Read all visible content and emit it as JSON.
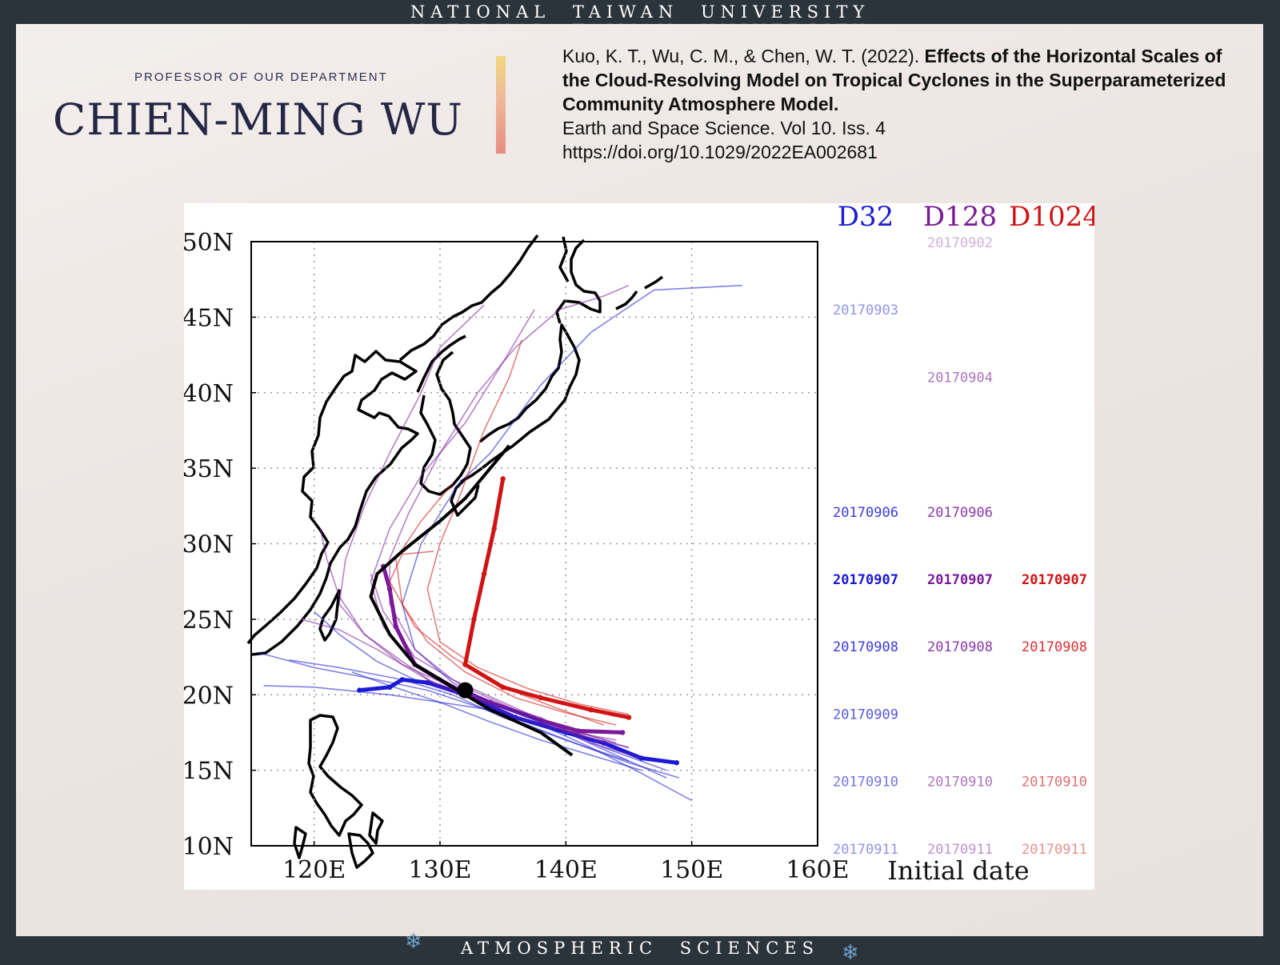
{
  "banner": {
    "top": "NATIONAL TAIWAN UNIVERSITY",
    "bottom": "ATMOSPHERIC SCIENCES"
  },
  "header": {
    "label": "PROFESSOR OF OUR DEPARTMENT",
    "name": "CHIEN-MING WU",
    "citation_authors": "Kuo, K. T., Wu, C. M., & Chen, W. T. (2022). ",
    "citation_title": "Effects of the Horizontal Scales of the Cloud-Resolving Model on Tropical Cyclones in the Superparameterized Community Atmosphere Model.",
    "citation_journal": "Earth and Space Science. Vol 10. Iss. 4",
    "citation_doi": "https://doi.org/10.1029/2022EA002681"
  },
  "icons": {
    "snowflake_left": "snowflake-icon",
    "snowflake_right": "snowflake-icon"
  },
  "colors": {
    "D32": "#1a1ad6",
    "D128": "#7a1a9a",
    "D1024": "#d01414",
    "observed": "#000000",
    "frame": "#2b333b"
  },
  "chart_data": {
    "type": "line",
    "subtype": "tropical-cyclone track map",
    "x_ticks": [
      "120E",
      "130E",
      "140E",
      "150E",
      "160E"
    ],
    "y_ticks": [
      "10N",
      "15N",
      "20N",
      "25N",
      "30N",
      "35N",
      "40N",
      "45N",
      "50N"
    ],
    "xlim": [
      115,
      160
    ],
    "ylim": [
      10,
      50
    ],
    "grid": true,
    "legend_columns": [
      "D32",
      "D128",
      "D1024"
    ],
    "legend_xlabel": "Initial date",
    "legend_dates": [
      "20170902",
      "20170903",
      "20170904",
      "20170906",
      "20170907",
      "20170908",
      "20170909",
      "20170910",
      "20170911"
    ],
    "legend_entries": {
      "D32": [
        "20170903",
        "20170906",
        "20170907",
        "20170908",
        "20170909",
        "20170910",
        "20170911"
      ],
      "D128": [
        "20170902",
        "20170904",
        "20170906",
        "20170907",
        "20170908",
        "20170910",
        "20170911"
      ],
      "D1024": [
        "20170907",
        "20170908",
        "20170910",
        "20170911"
      ]
    },
    "highlight_date": "20170907",
    "observed_track": [
      [
        140.5,
        16
      ],
      [
        138,
        17.5
      ],
      [
        134,
        19
      ],
      [
        131,
        20.5
      ],
      [
        128,
        22
      ],
      [
        126,
        24
      ],
      [
        124.5,
        26.5
      ],
      [
        125,
        28
      ],
      [
        127,
        29.5
      ],
      [
        130,
        31.5
      ],
      [
        132,
        33
      ],
      [
        134,
        35
      ],
      [
        135.5,
        36.5
      ]
    ],
    "observed_start": [
      132,
      20.3
    ],
    "series": [
      {
        "model": "D32",
        "date": "20170907",
        "points": [
          [
            148.8,
            15.5
          ],
          [
            146,
            15.8
          ],
          [
            143,
            16.8
          ],
          [
            140,
            17.5
          ],
          [
            136,
            18.5
          ],
          [
            132,
            20
          ],
          [
            129,
            20.8
          ],
          [
            127,
            21
          ],
          [
            126,
            20.5
          ],
          [
            123.6,
            20.3
          ]
        ]
      },
      {
        "model": "D128",
        "date": "20170907",
        "points": [
          [
            144.5,
            17.5
          ],
          [
            141,
            17.6
          ],
          [
            138,
            18.3
          ],
          [
            134,
            19.5
          ],
          [
            131,
            20.5
          ],
          [
            128,
            22
          ],
          [
            126.5,
            24.5
          ],
          [
            126,
            27
          ],
          [
            125.5,
            28.5
          ]
        ]
      },
      {
        "model": "D1024",
        "date": "20170907",
        "points": [
          [
            145,
            18.5
          ],
          [
            142,
            19
          ],
          [
            138,
            19.8
          ],
          [
            135,
            20.5
          ],
          [
            132,
            22
          ],
          [
            132.7,
            25
          ],
          [
            133.5,
            28
          ],
          [
            134.3,
            31
          ],
          [
            135,
            34.3
          ]
        ]
      },
      {
        "model": "D32",
        "date": "20170903",
        "points": [
          [
            150,
            13
          ],
          [
            146,
            14.8
          ],
          [
            142,
            16.5
          ],
          [
            138,
            18
          ],
          [
            134,
            19
          ],
          [
            130,
            19.5
          ],
          [
            126,
            20
          ],
          [
            120,
            20.5
          ],
          [
            116,
            20.6
          ]
        ]
      },
      {
        "model": "D32",
        "date": "20170906",
        "points": [
          [
            148,
            14.5
          ],
          [
            144,
            16
          ],
          [
            140,
            17.5
          ],
          [
            136,
            18.8
          ],
          [
            132,
            20
          ],
          [
            128,
            21
          ],
          [
            125,
            22.2
          ],
          [
            122,
            24
          ],
          [
            120,
            25.5
          ]
        ]
      },
      {
        "model": "D32",
        "date": "20170908",
        "points": [
          [
            148,
            15
          ],
          [
            143,
            16.5
          ],
          [
            139,
            18
          ],
          [
            134,
            19.5
          ],
          [
            131,
            20.8
          ],
          [
            128,
            23
          ],
          [
            127,
            26
          ],
          [
            128.5,
            30
          ],
          [
            131.5,
            34
          ],
          [
            134,
            36
          ],
          [
            138,
            40.5
          ],
          [
            142,
            44
          ],
          [
            147,
            46.8
          ],
          [
            154,
            47.1
          ]
        ]
      },
      {
        "model": "D32",
        "date": "20170909",
        "points": [
          [
            145,
            15.6
          ],
          [
            140,
            17
          ],
          [
            135,
            18.5
          ],
          [
            131,
            20
          ],
          [
            127,
            21
          ],
          [
            122,
            21.8
          ],
          [
            118,
            22.3
          ]
        ]
      },
      {
        "model": "D32",
        "date": "20170910",
        "points": [
          [
            149,
            14.5
          ],
          [
            145,
            15.5
          ],
          [
            141,
            16.7
          ],
          [
            137,
            18
          ],
          [
            133,
            19.2
          ],
          [
            129,
            20.3
          ],
          [
            125,
            21
          ],
          [
            120,
            21.8
          ],
          [
            115.5,
            22.8
          ]
        ]
      },
      {
        "model": "D32",
        "date": "20170911",
        "points": [
          [
            146,
            15
          ],
          [
            142,
            16
          ],
          [
            138,
            17
          ],
          [
            134,
            18.2
          ],
          [
            130,
            19.5
          ],
          [
            126,
            20.6
          ],
          [
            123,
            21.5
          ]
        ]
      },
      {
        "model": "D128",
        "date": "20170902",
        "points": [
          [
            146,
            15.8
          ],
          [
            142,
            16.8
          ],
          [
            138,
            18.5
          ],
          [
            134,
            19.5
          ],
          [
            130,
            20.5
          ],
          [
            127,
            22.2
          ],
          [
            124,
            24
          ],
          [
            122,
            26
          ],
          [
            122.5,
            29
          ],
          [
            124,
            32.5
          ],
          [
            126,
            36
          ],
          [
            128.5,
            40
          ],
          [
            130,
            43
          ],
          [
            133.5,
            45.8
          ]
        ]
      },
      {
        "model": "D128",
        "date": "20170904",
        "points": [
          [
            145,
            16.5
          ],
          [
            141,
            17.3
          ],
          [
            136,
            18.5
          ],
          [
            131,
            20.5
          ],
          [
            127,
            22
          ],
          [
            124,
            24
          ],
          [
            122,
            26.5
          ],
          [
            121,
            29
          ],
          [
            120.5,
            31
          ]
        ]
      },
      {
        "model": "D128",
        "date": "20170906",
        "points": [
          [
            143,
            16.8
          ],
          [
            139,
            18
          ],
          [
            135,
            19.5
          ],
          [
            131,
            21
          ],
          [
            128,
            23
          ],
          [
            126,
            26
          ],
          [
            126,
            29
          ],
          [
            127.5,
            32
          ],
          [
            130,
            36
          ],
          [
            133,
            40
          ],
          [
            136,
            43
          ],
          [
            139.5,
            45.5
          ],
          [
            143,
            46.4
          ],
          [
            145,
            47.1
          ]
        ]
      },
      {
        "model": "D128",
        "date": "20170908",
        "points": [
          [
            144,
            17
          ],
          [
            140,
            17.6
          ],
          [
            136,
            18.8
          ],
          [
            132,
            20.2
          ],
          [
            128,
            22
          ],
          [
            125.5,
            24.5
          ],
          [
            124.5,
            27.5
          ],
          [
            126,
            31
          ],
          [
            128.5,
            34.5
          ],
          [
            132,
            38
          ],
          [
            135,
            42
          ],
          [
            137.5,
            45.5
          ]
        ]
      },
      {
        "model": "D128",
        "date": "20170910",
        "points": [
          [
            145,
            16.5
          ],
          [
            141,
            17.5
          ],
          [
            137,
            18.5
          ],
          [
            133,
            19.7
          ],
          [
            129,
            21
          ],
          [
            125,
            23
          ],
          [
            122,
            24.3
          ],
          [
            119,
            25
          ]
        ]
      },
      {
        "model": "D128",
        "date": "20170911",
        "points": [
          [
            144,
            16.8
          ],
          [
            140,
            17.8
          ],
          [
            136,
            19
          ],
          [
            132,
            20.5
          ],
          [
            128,
            22.5
          ],
          [
            125.5,
            25.5
          ],
          [
            124.5,
            28
          ]
        ]
      },
      {
        "model": "D1024",
        "date": "20170908",
        "points": [
          [
            145,
            18.7
          ],
          [
            141,
            19.4
          ],
          [
            137,
            20.4
          ],
          [
            133,
            21.8
          ],
          [
            130,
            23.5
          ],
          [
            129,
            27
          ],
          [
            130,
            30
          ],
          [
            131.5,
            33
          ],
          [
            133.5,
            37.5
          ],
          [
            135.5,
            41
          ],
          [
            136.5,
            43.5
          ]
        ]
      },
      {
        "model": "D1024",
        "date": "20170910",
        "points": [
          [
            144,
            18
          ],
          [
            140,
            18.8
          ],
          [
            136,
            19.8
          ],
          [
            132,
            21.5
          ],
          [
            129,
            23.5
          ],
          [
            127,
            26
          ],
          [
            126.5,
            29
          ],
          [
            128.5,
            31.5
          ],
          [
            131,
            34
          ]
        ]
      },
      {
        "model": "D1024",
        "date": "20170911",
        "points": [
          [
            143,
            18
          ],
          [
            139,
            19.2
          ],
          [
            135,
            20.5
          ],
          [
            131,
            22.5
          ],
          [
            128,
            24.5
          ],
          [
            126,
            27.5
          ],
          [
            127,
            29.3
          ],
          [
            129.5,
            29.5
          ]
        ]
      }
    ],
    "title": "",
    "xlabel": "",
    "ylabel": ""
  }
}
